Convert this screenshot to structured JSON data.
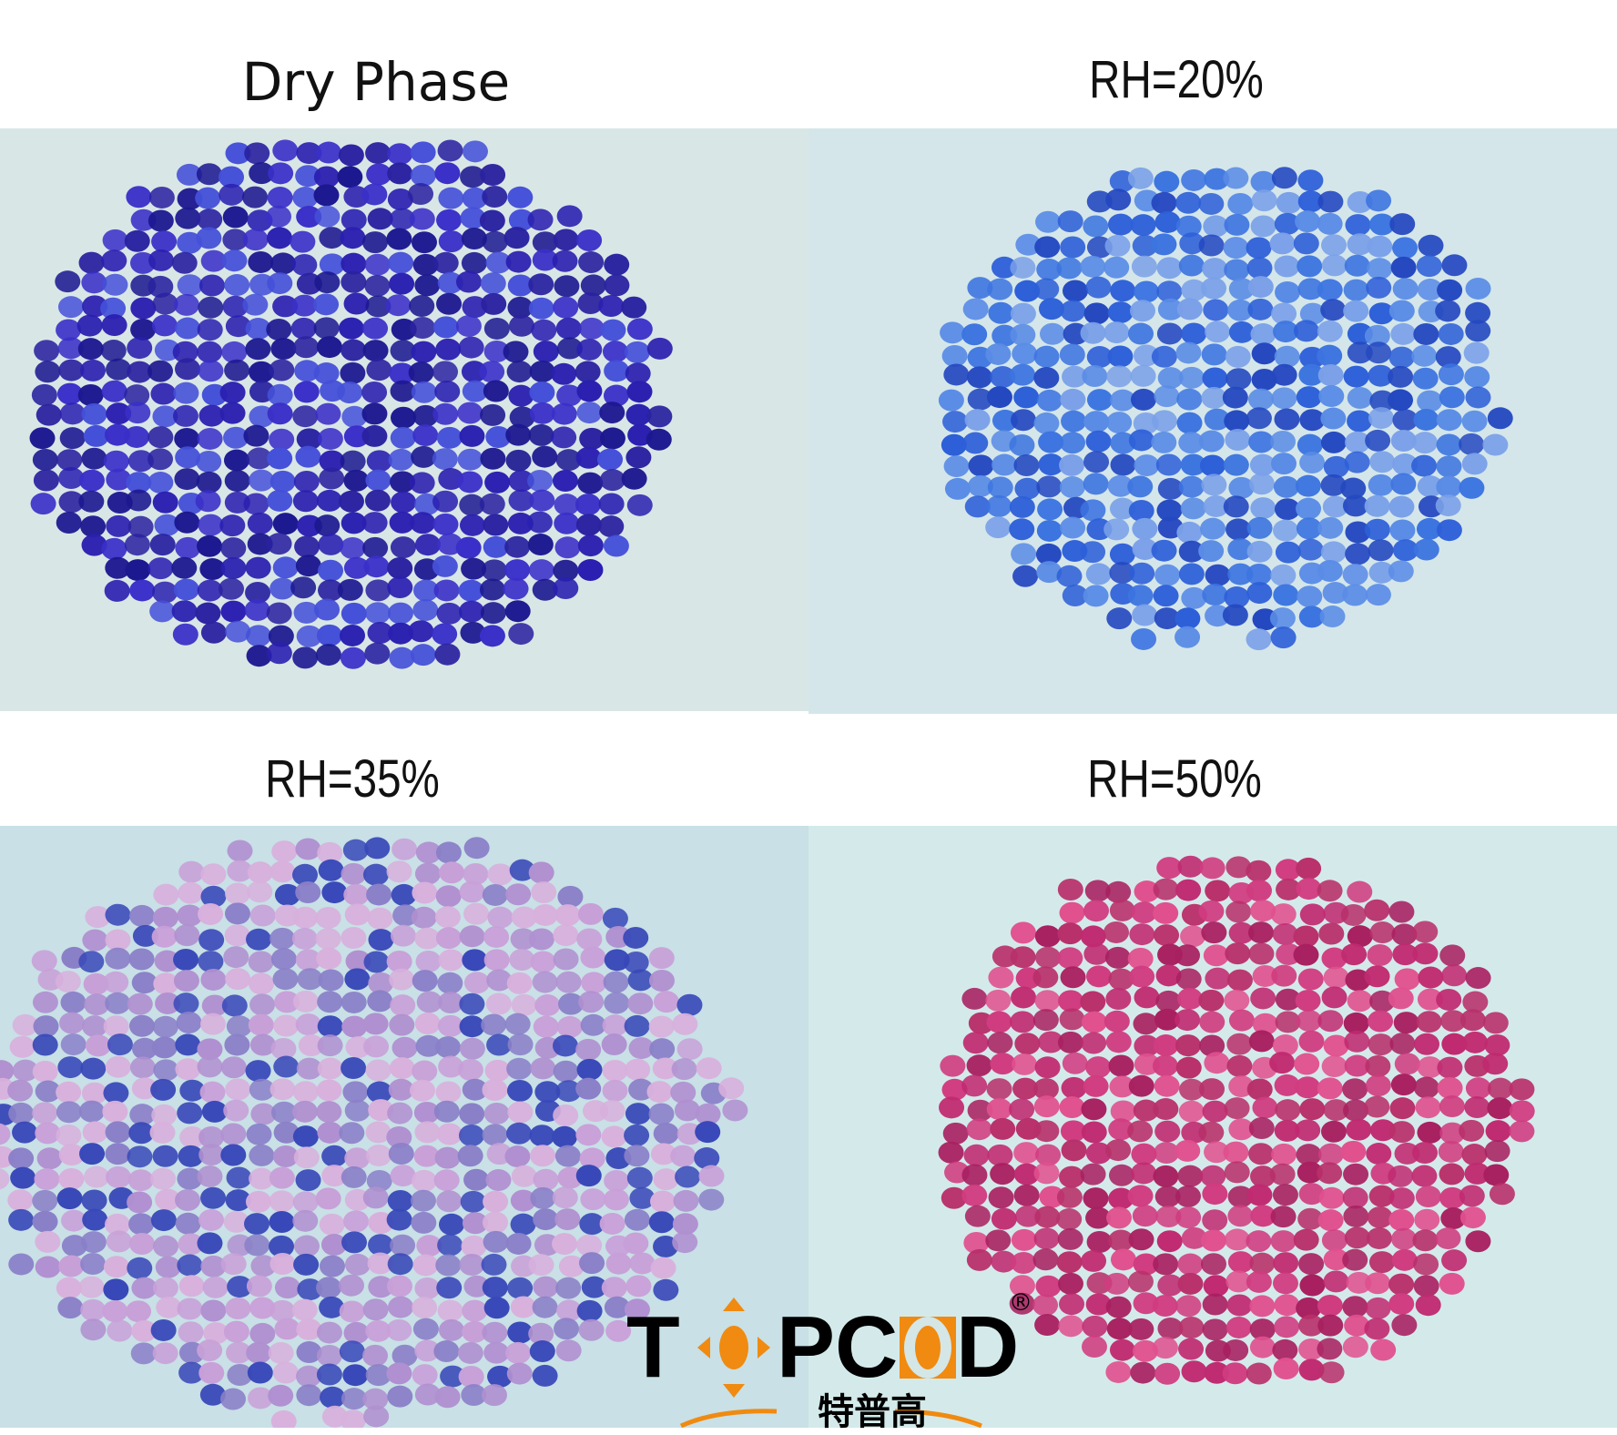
{
  "panels": [
    {
      "label": "Dry Phase",
      "bg": "#d9e6e6",
      "bead_colors": [
        "#2a1fb0",
        "#3a2fc8",
        "#2a22a0",
        "#4450d8",
        "#1c1890"
      ]
    },
    {
      "label": "RH=20%",
      "bg": "#d4e6ea",
      "bead_colors": [
        "#2d5fd8",
        "#3c74e0",
        "#5a8ce6",
        "#2448c0",
        "#7aa0e8"
      ]
    },
    {
      "label": "RH=35%",
      "bg": "#c8e0e6",
      "bead_colors": [
        "#c8a0d8",
        "#b090d0",
        "#3848b8",
        "#d8b0dc",
        "#8a80c8"
      ]
    },
    {
      "label": "RH=50%",
      "bg": "#d4eaea",
      "bead_colors": [
        "#c02a70",
        "#d03c80",
        "#a82060",
        "#e0508e",
        "#b8306a"
      ]
    }
  ],
  "logo": {
    "text": "TOPCOD",
    "registered": "®",
    "chinese": "特普高",
    "accent": "#f08a10"
  }
}
